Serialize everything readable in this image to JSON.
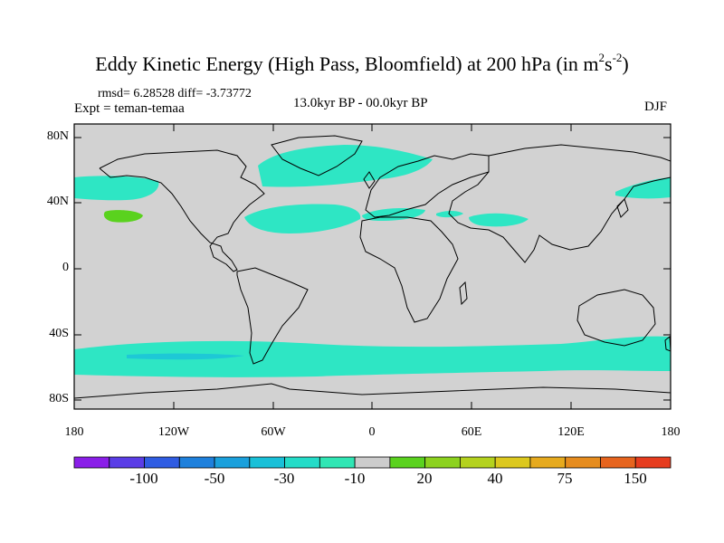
{
  "title": {
    "text": "Eddy Kinetic Energy (High Pass, Bloomfield) at 200 hPa (in m",
    "sup1": "2",
    "mid": "s",
    "sup2": "-2",
    "end": ")"
  },
  "stats_line": "rmsd= 6.28528 diff= -3.73772",
  "experiment": "Expt = teman-temaa",
  "period": "13.0kyr BP - 00.0kyr BP",
  "season": "DJF",
  "latitude_labels": [
    "80N",
    "40N",
    "0",
    "40S",
    "80S"
  ],
  "longitude_labels": [
    "180",
    "120W",
    "60W",
    "0",
    "60E",
    "120E",
    "180"
  ],
  "colorbar": {
    "labels": [
      "-100",
      "-50",
      "-30",
      "-10",
      "20",
      "40",
      "75",
      "150"
    ],
    "colors": [
      "#8a1ee8",
      "#5a3de6",
      "#2f5ce2",
      "#1e80dc",
      "#1aa0dc",
      "#19c0d8",
      "#24dcc8",
      "#30e6b4",
      "#cccccc",
      "#5ad21e",
      "#8cd21e",
      "#b4d21e",
      "#dcc81e",
      "#e6aa1e",
      "#e68c1e",
      "#e6641e",
      "#e63c1e"
    ]
  },
  "colors": {
    "land_ocean_background": "#d2d2d2",
    "anomaly_negative": "#2ee6c4",
    "anomaly_strong_negative": "#1ec8d6",
    "anomaly_positive": "#5ad21e"
  }
}
